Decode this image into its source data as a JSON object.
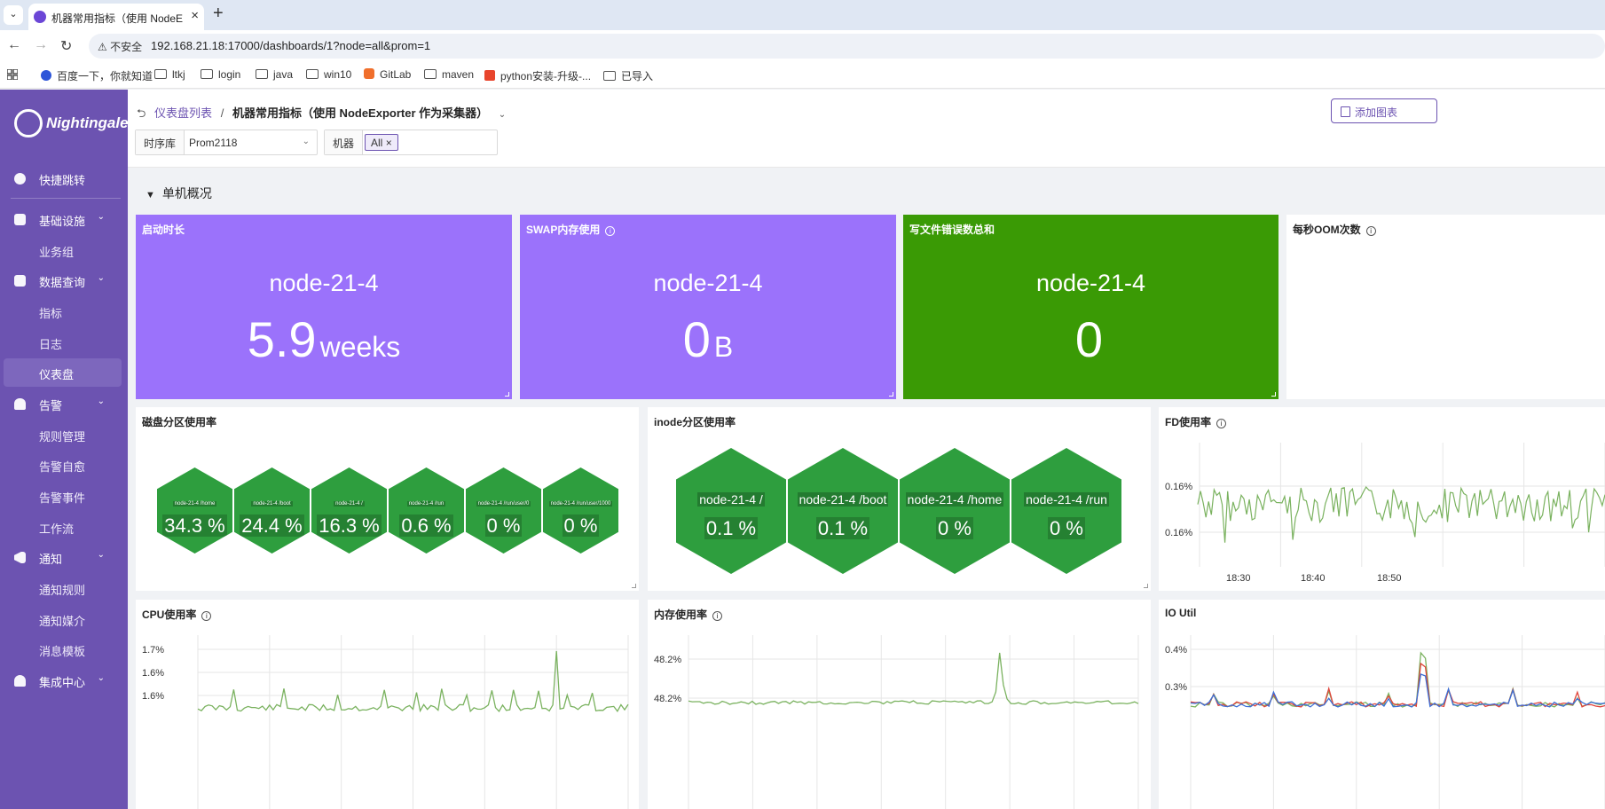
{
  "browser": {
    "tab_title": "机器常用指标（使用 NodeExporter 作为采集器）",
    "security_label": "不安全",
    "url": "192.168.21.18:17000/dashboards/1?node=all&prom=1",
    "bookmarks": [
      "百度一下，你就知道",
      "ltkj",
      "login",
      "java",
      "win10",
      "GitLab",
      "maven",
      "python安装-升级-...",
      "已导入"
    ]
  },
  "sidebar": {
    "logo_text": "Nightingale",
    "items": {
      "quick_jump": "快捷跳转",
      "infra": "基础设施",
      "biz_group": "业务组",
      "data_query": "数据查询",
      "metrics": "指标",
      "logs": "日志",
      "dashboard": "仪表盘",
      "alert": "告警",
      "rules": "规则管理",
      "self_heal": "告警自愈",
      "events": "告警事件",
      "workflow": "工作流",
      "notify": "通知",
      "notify_rules": "通知规则",
      "notify_media": "通知媒介",
      "msg_template": "消息模板",
      "integration": "集成中心"
    }
  },
  "header": {
    "breadcrumb_link": "仪表盘列表",
    "breadcrumb_sep": "/",
    "dashboard_title": "机器常用指标（使用 NodeExporter 作为采集器）",
    "add_chart": "添加图表",
    "datasource_label": "时序库",
    "datasource_value": "Prom2118",
    "machine_label": "机器",
    "machine_tag": "All"
  },
  "section": {
    "title": "单机概况"
  },
  "stat_panels": [
    {
      "title": "启动时长",
      "name": "node-21-4",
      "value": "5.9",
      "unit": "weeks",
      "color": "#9b72fb"
    },
    {
      "title": "SWAP内存使用",
      "name": "node-21-4",
      "value": "0",
      "unit": "B",
      "color": "#9b72fb"
    },
    {
      "title": "写文件错误数总和",
      "name": "node-21-4",
      "value": "0",
      "unit": "",
      "color": "#3a9a05"
    },
    {
      "title": "每秒OOM次数",
      "name": "",
      "value": "",
      "unit": "",
      "color": "#ffffff"
    }
  ],
  "disk_panel": {
    "title": "磁盘分区使用率",
    "cells": [
      {
        "label": "node-21-4 /home",
        "value": "34.3 %"
      },
      {
        "label": "node-21-4 /boot",
        "value": "24.4 %"
      },
      {
        "label": "node-21-4 /",
        "value": "16.3 %"
      },
      {
        "label": "node-21-4 /run",
        "value": "0.6 %"
      },
      {
        "label": "node-21-4 /run/user/0",
        "value": "0 %"
      },
      {
        "label": "node-21-4 /run/user/1000",
        "value": "0 %"
      }
    ],
    "color": "#2e9e3e"
  },
  "inode_panel": {
    "title": "inode分区使用率",
    "cells": [
      {
        "label": "node-21-4 /",
        "value": "0.1 %"
      },
      {
        "label": "node-21-4 /boot",
        "value": "0.1 %"
      },
      {
        "label": "node-21-4 /home",
        "value": "0 %"
      },
      {
        "label": "node-21-4 /run",
        "value": "0 %"
      }
    ],
    "color": "#2e9e3e"
  },
  "fd_panel": {
    "title": "FD使用率",
    "y_ticks": [
      "0.16%",
      "0.16%"
    ],
    "x_ticks": [
      "18:30",
      "18:40",
      "18:50"
    ],
    "line_color": "#7ab25f"
  },
  "cpu_panel": {
    "title": "CPU使用率",
    "y_ticks": [
      "1.7%",
      "1.6%",
      "1.6%"
    ],
    "line_color": "#7ab25f"
  },
  "mem_panel": {
    "title": "内存使用率",
    "y_ticks": [
      "48.2%",
      "48.2%"
    ],
    "line_color": "#7ab25f"
  },
  "io_panel": {
    "title": "IO Util",
    "y_ticks": [
      "0.4%",
      "0.3%"
    ],
    "series_colors": [
      "#7ab25f",
      "#e0443a",
      "#3b6fd6"
    ]
  }
}
